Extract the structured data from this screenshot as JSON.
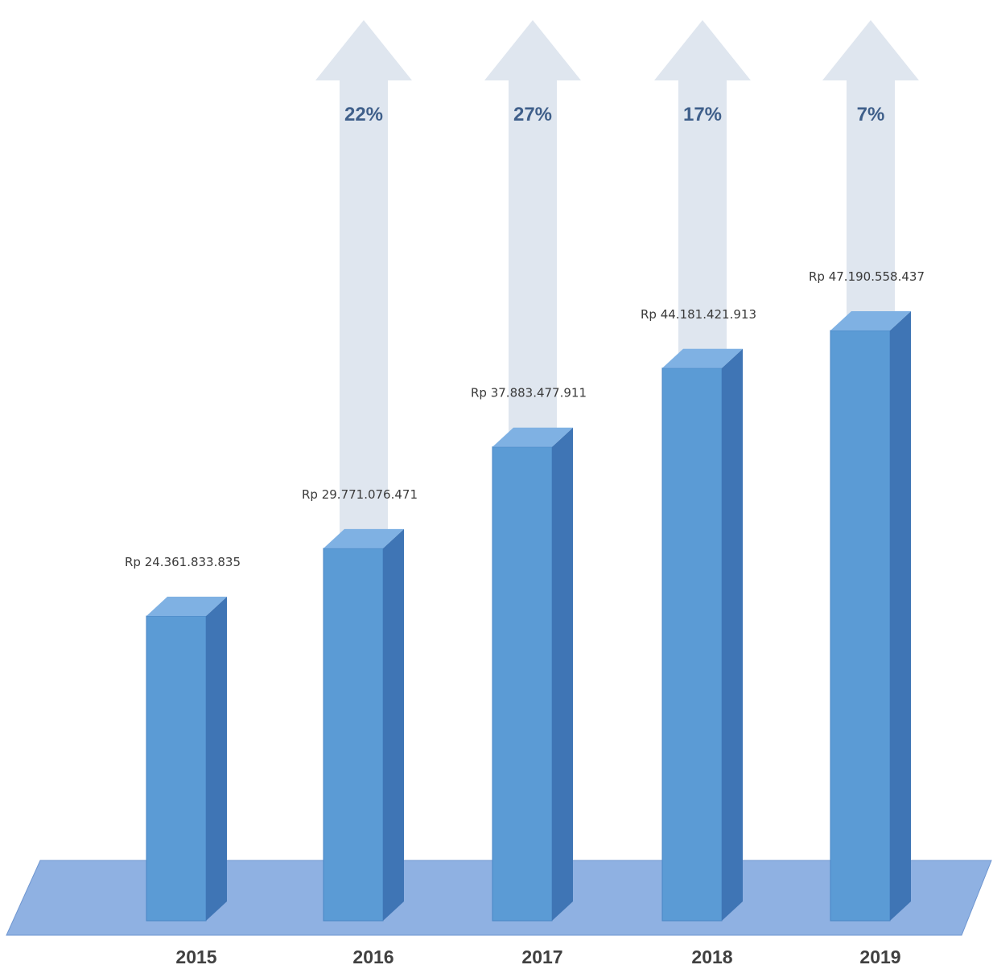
{
  "chart_data": {
    "type": "bar",
    "categories": [
      "2015",
      "2016",
      "2017",
      "2018",
      "2019"
    ],
    "values": [
      24361833835,
      29771076471,
      37883477911,
      44181421913,
      47190558437
    ],
    "value_labels": [
      "Rp 24.361.833.835",
      "Rp 29.771.076.471",
      "Rp 37.883.477.911",
      "Rp 44.181.421.913",
      "Rp 47.190.558.437"
    ],
    "growth_labels": [
      "",
      "22%",
      "27%",
      "17%",
      "7%"
    ],
    "ylim": [
      0,
      50000000000
    ],
    "grid": false,
    "colors": {
      "bar_front": "#5b9bd5",
      "bar_side": "#3f75b5",
      "bar_top": "#7fb1e3",
      "arrow": "#dfe6ef",
      "floor": "#8fb1e2",
      "floor_edge": "#6f96d0"
    }
  }
}
